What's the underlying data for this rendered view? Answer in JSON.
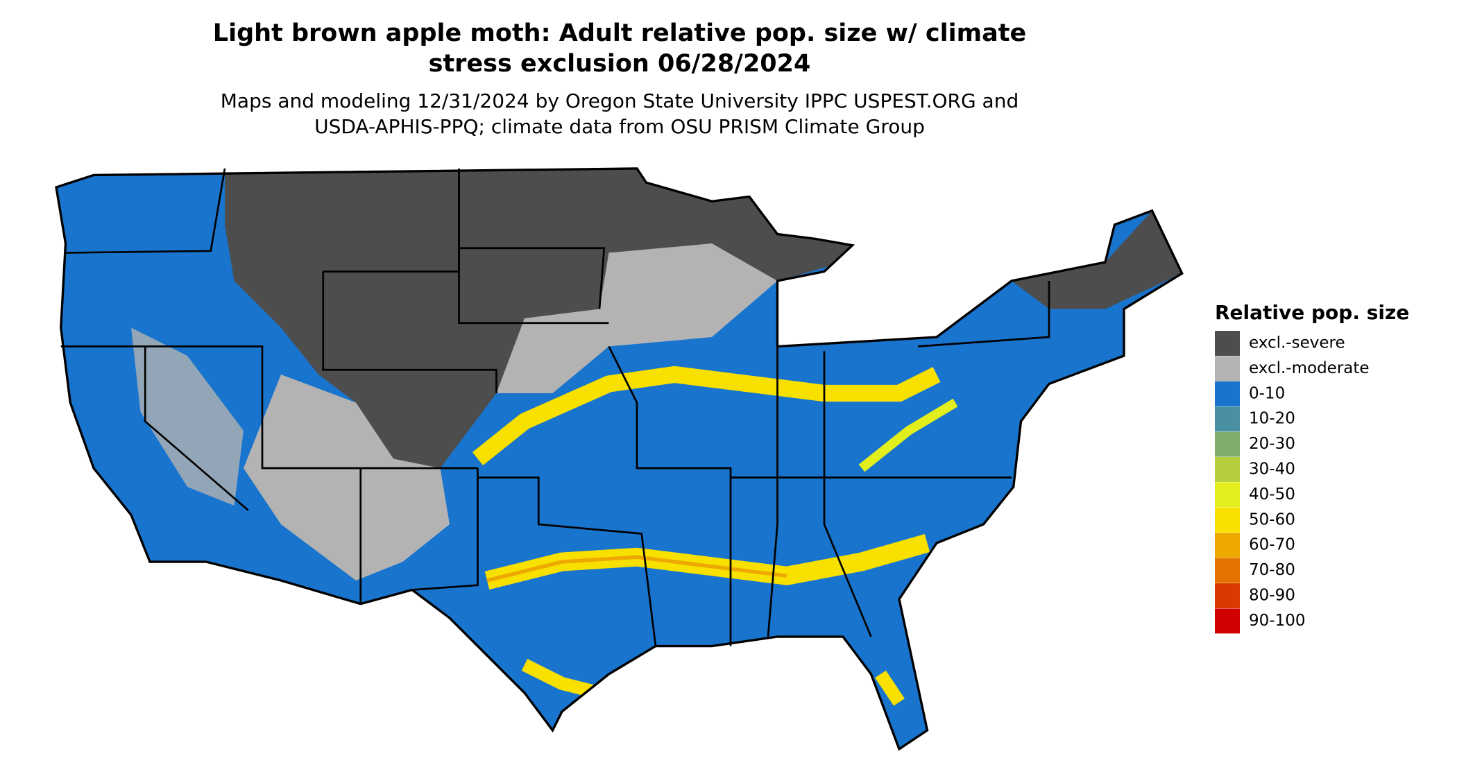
{
  "title_lines": [
    "Light brown apple moth: Adult relative pop. size w/ climate",
    "stress exclusion 06/28/2024"
  ],
  "subtitle_lines": [
    "Maps and modeling 12/31/2024 by Oregon State University IPPC USPEST.ORG and",
    "USDA-APHIS-PPQ; climate data from OSU PRISM Climate Group"
  ],
  "legend": {
    "title": "Relative pop. size",
    "items": [
      {
        "label": "excl.-severe",
        "color": "#4d4d4d"
      },
      {
        "label": "excl.-moderate",
        "color": "#b3b3b3"
      },
      {
        "label": "0-10",
        "color": "#1874cd"
      },
      {
        "label": "10-20",
        "color": "#4a90a4"
      },
      {
        "label": "20-30",
        "color": "#7fae6a"
      },
      {
        "label": "30-40",
        "color": "#b5cf3c"
      },
      {
        "label": "40-50",
        "color": "#e3ef1c"
      },
      {
        "label": "50-60",
        "color": "#f8e000"
      },
      {
        "label": "60-70",
        "color": "#eea800"
      },
      {
        "label": "70-80",
        "color": "#e47200"
      },
      {
        "label": "80-90",
        "color": "#da3a00"
      },
      {
        "label": "90-100",
        "color": "#d00000"
      }
    ]
  }
}
